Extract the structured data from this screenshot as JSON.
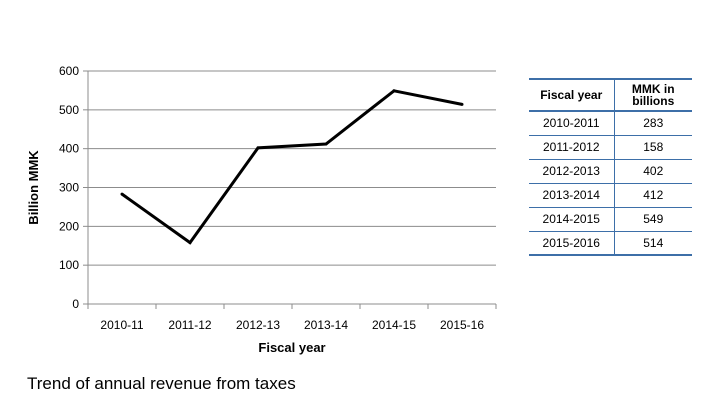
{
  "chart_data": {
    "type": "line",
    "categories": [
      "2010-11",
      "2011-12",
      "2012-13",
      "2013-14",
      "2014-15",
      "2015-16"
    ],
    "values": [
      283,
      158,
      402,
      412,
      549,
      514
    ],
    "xlabel": "Fiscal year",
    "ylabel": "Billion MMK",
    "ylim": [
      0,
      600
    ],
    "yticks": [
      0,
      100,
      200,
      300,
      400,
      500,
      600
    ],
    "grid": true,
    "line_color": "#000000"
  },
  "table": {
    "headers": [
      "Fiscal year",
      "MMK in billions"
    ],
    "rows": [
      [
        "2010-2011",
        "283"
      ],
      [
        "2011-2012",
        "158"
      ],
      [
        "2012-2013",
        "402"
      ],
      [
        "2013-2014",
        "412"
      ],
      [
        "2014-2015",
        "549"
      ],
      [
        "2015-2016",
        "514"
      ]
    ]
  },
  "caption": "Trend of annual revenue from taxes"
}
